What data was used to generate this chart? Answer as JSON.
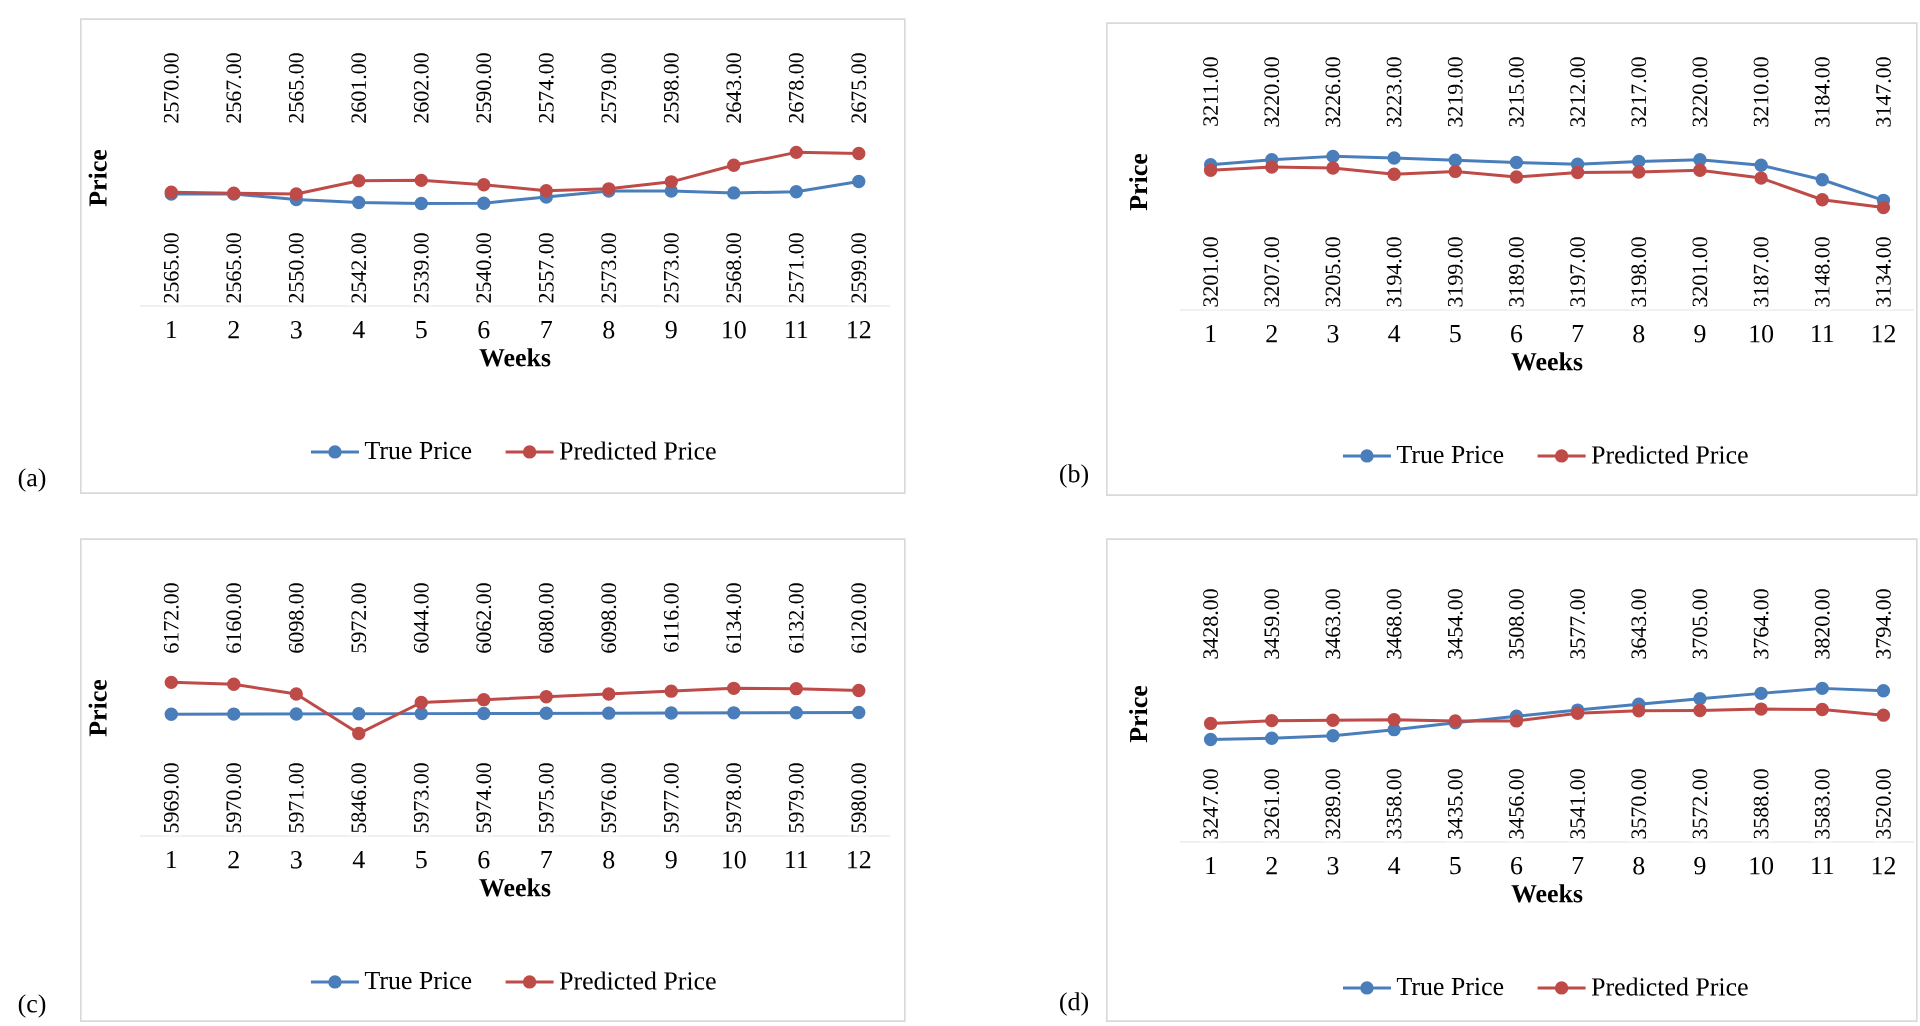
{
  "chart_data": [
    {
      "type": "line",
      "xlabel": "Weeks",
      "ylabel": "Price",
      "categories": [
        "1",
        "2",
        "3",
        "4",
        "5",
        "6",
        "7",
        "8",
        "9",
        "10",
        "11",
        "12"
      ],
      "legend": "bottom",
      "marker": "circle",
      "tick_labels": "x",
      "annotations": [
        "(a)"
      ],
      "series": [
        {
          "name": "True Price",
          "color": "#4a7ebb",
          "values": [
            2565,
            2565,
            2550,
            2542,
            2539,
            2540,
            2557,
            2573,
            2573,
            2568,
            2571,
            2599
          ],
          "value_labels": [
            "2565.00",
            "2565.00",
            "2550.00",
            "2542.00",
            "2539.00",
            "2540.00",
            "2557.00",
            "2573.00",
            "2573.00",
            "2568.00",
            "2571.00",
            "2599.00"
          ]
        },
        {
          "name": "Predicted Price",
          "color": "#be4b48",
          "values": [
            2570,
            2567,
            2565,
            2601,
            2602,
            2590,
            2574,
            2579,
            2598,
            2643,
            2678,
            2675
          ],
          "value_labels": [
            "2570.00",
            "2567.00",
            "2565.00",
            "2601.00",
            "2602.00",
            "2590.00",
            "2574.00",
            "2579.00",
            "2598.00",
            "2643.00",
            "2678.00",
            "2675.00"
          ]
        }
      ]
    },
    {
      "type": "line",
      "xlabel": "Weeks",
      "ylabel": "Price",
      "categories": [
        "1",
        "2",
        "3",
        "4",
        "5",
        "6",
        "7",
        "8",
        "9",
        "10",
        "11",
        "12"
      ],
      "legend": "bottom",
      "marker": "circle",
      "tick_labels": "x",
      "annotations": [
        "(b)"
      ],
      "series": [
        {
          "name": "True Price",
          "color": "#4a7ebb",
          "values": [
            3211,
            3220,
            3226,
            3223,
            3219,
            3215,
            3212,
            3217,
            3220,
            3210,
            3184,
            3147
          ],
          "value_labels": [
            "3211.00",
            "3220.00",
            "3226.00",
            "3223.00",
            "3219.00",
            "3215.00",
            "3212.00",
            "3217.00",
            "3220.00",
            "3210.00",
            "3184.00",
            "3147.00"
          ]
        },
        {
          "name": "Predicted Price",
          "color": "#be4b48",
          "values": [
            3201,
            3207,
            3205,
            3194,
            3199,
            3189,
            3197,
            3198,
            3201,
            3187,
            3148,
            3134
          ],
          "value_labels": [
            "3201.00",
            "3207.00",
            "3205.00",
            "3194.00",
            "3199.00",
            "3189.00",
            "3197.00",
            "3198.00",
            "3201.00",
            "3187.00",
            "3148.00",
            "3134.00"
          ]
        }
      ]
    },
    {
      "type": "line",
      "xlabel": "Weeks",
      "ylabel": "Price",
      "categories": [
        "1",
        "2",
        "3",
        "4",
        "5",
        "6",
        "7",
        "8",
        "9",
        "10",
        "11",
        "12"
      ],
      "legend": "bottom",
      "marker": "circle",
      "tick_labels": "x",
      "annotations": [
        "(c)"
      ],
      "series": [
        {
          "name": "True Price",
          "color": "#4a7ebb",
          "values": [
            5969,
            5970,
            5971,
            5972,
            5973,
            5974,
            5975,
            5976,
            5977,
            5978,
            5979,
            5980
          ],
          "value_labels": [
            "5969.00",
            "5970.00",
            "5971.00",
            "5972.00",
            "5973.00",
            "5974.00",
            "5975.00",
            "5976.00",
            "5977.00",
            "5978.00",
            "5979.00",
            "5980.00"
          ]
        },
        {
          "name": "Predicted Price",
          "color": "#be4b48",
          "values": [
            6172,
            6160,
            6098,
            5846,
            6044,
            6062,
            6080,
            6098,
            6116,
            6134,
            6132,
            6120
          ],
          "value_labels": [
            "6172.00",
            "6160.00",
            "6098.00",
            "5846.00",
            "6044.00",
            "6062.00",
            "6080.00",
            "6098.00",
            "6116.00",
            "6134.00",
            "6132.00",
            "6120.00"
          ]
        }
      ]
    },
    {
      "type": "line",
      "xlabel": "Weeks",
      "ylabel": "Price",
      "categories": [
        "1",
        "2",
        "3",
        "4",
        "5",
        "6",
        "7",
        "8",
        "9",
        "10",
        "11",
        "12"
      ],
      "legend": "bottom",
      "marker": "circle",
      "tick_labels": "x",
      "annotations": [
        "(d)"
      ],
      "series": [
        {
          "name": "True Price",
          "color": "#4a7ebb",
          "values": [
            3247,
            3261,
            3289,
            3358,
            3435,
            3508,
            3577,
            3643,
            3705,
            3764,
            3820,
            3794
          ],
          "value_labels": [
            "3247.00",
            "3261.00",
            "3289.00",
            "3358.00",
            "3435.00",
            "3508.00",
            "3577.00",
            "3643.00",
            "3705.00",
            "3764.00",
            "3820.00",
            "3794.00"
          ]
        },
        {
          "name": "Predicted Price",
          "color": "#be4b48",
          "values": [
            3428,
            3459,
            3463,
            3468,
            3454,
            3456,
            3541,
            3570,
            3572,
            3588,
            3583,
            3520
          ],
          "value_labels": [
            "3428.00",
            "3459.00",
            "3463.00",
            "3468.00",
            "3454.00",
            "3456.00",
            "3541.00",
            "3570.00",
            "3572.00",
            "3588.00",
            "3583.00",
            "3520.00"
          ]
        }
      ]
    }
  ]
}
